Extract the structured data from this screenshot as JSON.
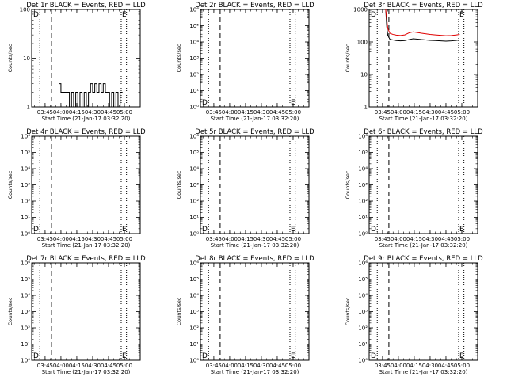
{
  "figure": {
    "time_axis_label": "Start Time (21-Jan-17 03:32:20)",
    "y_axis_label": "Counts/sec",
    "time_ticks": [
      "03:45",
      "04:00",
      "04:15",
      "04:30",
      "04:45",
      "05:00"
    ],
    "markers": {
      "start": "D",
      "end": "E"
    }
  },
  "chart_data": [
    {
      "type": "line",
      "title": "Det 1r BLACK = Events, RED = LLD",
      "ylim": [
        1,
        100
      ],
      "yscale": "log",
      "ytick_labels": [
        "1",
        "10",
        "100"
      ],
      "series": [
        {
          "color": "#000000",
          "x": [
            "03:58:00",
            "04:00:00",
            "04:02:00",
            "04:04:00",
            "04:06:00",
            "04:08:00",
            "04:10:00",
            "04:12:00",
            "04:14:00",
            "04:16:00",
            "04:18:00",
            "04:20:00",
            "04:22:00",
            "04:24:00",
            "04:26:00",
            "04:28:00",
            "04:30:00",
            "04:32:00",
            "04:34:00",
            "04:36:00",
            "04:38:00",
            "04:40:00",
            "04:42:00",
            "04:44:00",
            "04:46:00",
            "04:48:00",
            "04:50:00",
            "04:52:00",
            "04:54:00",
            "04:56:00"
          ],
          "values": [
            3,
            2,
            2,
            2,
            2,
            1,
            2,
            1,
            2,
            1,
            2,
            1,
            2,
            1,
            2,
            3,
            2,
            3,
            2,
            3,
            2,
            3,
            2,
            2,
            1,
            2,
            1,
            2,
            1,
            2
          ]
        }
      ]
    },
    {
      "type": "line",
      "title": "Det 2r BLACK = Events, RED = LLD",
      "ylim": [
        1,
        1000000
      ],
      "yscale": "log",
      "ytick_labels": [
        "10⁰",
        "10¹",
        "10²",
        "10³",
        "10⁴",
        "10⁵",
        "10⁶"
      ],
      "series": []
    },
    {
      "type": "line",
      "title": "Det 3r BLACK = Events, RED = LLD",
      "ylim": [
        1,
        1000
      ],
      "yscale": "log",
      "ytick_labels": [
        "1",
        "10",
        "100",
        "1000"
      ],
      "series": [
        {
          "color": "#000000",
          "x": [
            "03:48:00",
            "03:49:00",
            "03:50:00",
            "03:52:00",
            "03:55:00",
            "03:58:00",
            "04:02:00",
            "04:06:00",
            "04:10:00",
            "04:14:00",
            "04:18:00",
            "04:22:00",
            "04:26:00",
            "04:30:00",
            "04:35:00",
            "04:40:00",
            "04:45:00",
            "04:50:00",
            "04:55:00",
            "04:58:00"
          ],
          "values": [
            1000,
            300,
            160,
            120,
            115,
            110,
            108,
            110,
            118,
            125,
            122,
            118,
            115,
            112,
            110,
            108,
            106,
            108,
            112,
            115
          ]
        },
        {
          "color": "#e00000",
          "x": [
            "03:48:00",
            "03:49:00",
            "03:50:00",
            "03:52:00",
            "03:55:00",
            "03:58:00",
            "04:02:00",
            "04:06:00",
            "04:10:00",
            "04:14:00",
            "04:18:00",
            "04:22:00",
            "04:26:00",
            "04:30:00",
            "04:35:00",
            "04:40:00",
            "04:45:00",
            "04:50:00",
            "04:55:00",
            "04:58:00"
          ],
          "values": [
            1000,
            500,
            260,
            185,
            170,
            162,
            158,
            165,
            190,
            205,
            195,
            185,
            178,
            170,
            165,
            160,
            156,
            158,
            165,
            170
          ]
        }
      ]
    },
    {
      "type": "line",
      "title": "Det 4r BLACK = Events, RED = LLD",
      "ylim": [
        1,
        1000000
      ],
      "yscale": "log",
      "ytick_labels": [
        "10⁰",
        "10¹",
        "10²",
        "10³",
        "10⁴",
        "10⁵",
        "10⁶"
      ],
      "series": []
    },
    {
      "type": "line",
      "title": "Det 5r BLACK = Events, RED = LLD",
      "ylim": [
        1,
        1000000
      ],
      "yscale": "log",
      "ytick_labels": [
        "10⁰",
        "10¹",
        "10²",
        "10³",
        "10⁴",
        "10⁵",
        "10⁶"
      ],
      "series": []
    },
    {
      "type": "line",
      "title": "Det 6r BLACK = Events, RED = LLD",
      "ylim": [
        1,
        1000000
      ],
      "yscale": "log",
      "ytick_labels": [
        "10⁰",
        "10¹",
        "10²",
        "10³",
        "10⁴",
        "10⁵",
        "10⁶"
      ],
      "series": []
    },
    {
      "type": "line",
      "title": "Det 7r BLACK = Events, RED = LLD",
      "ylim": [
        1,
        1000000
      ],
      "yscale": "log",
      "ytick_labels": [
        "10⁰",
        "10¹",
        "10²",
        "10³",
        "10⁴",
        "10⁵",
        "10⁶"
      ],
      "series": []
    },
    {
      "type": "line",
      "title": "Det 8r BLACK = Events, RED = LLD",
      "ylim": [
        1,
        1000000
      ],
      "yscale": "log",
      "ytick_labels": [
        "10⁰",
        "10¹",
        "10²",
        "10³",
        "10⁴",
        "10⁵",
        "10⁶"
      ],
      "series": []
    },
    {
      "type": "line",
      "title": "Det 9r BLACK = Events, RED = LLD",
      "ylim": [
        1,
        1000000
      ],
      "yscale": "log",
      "ytick_labels": [
        "10⁰",
        "10¹",
        "10²",
        "10³",
        "10⁴",
        "10⁵",
        "10⁶"
      ],
      "series": []
    }
  ]
}
